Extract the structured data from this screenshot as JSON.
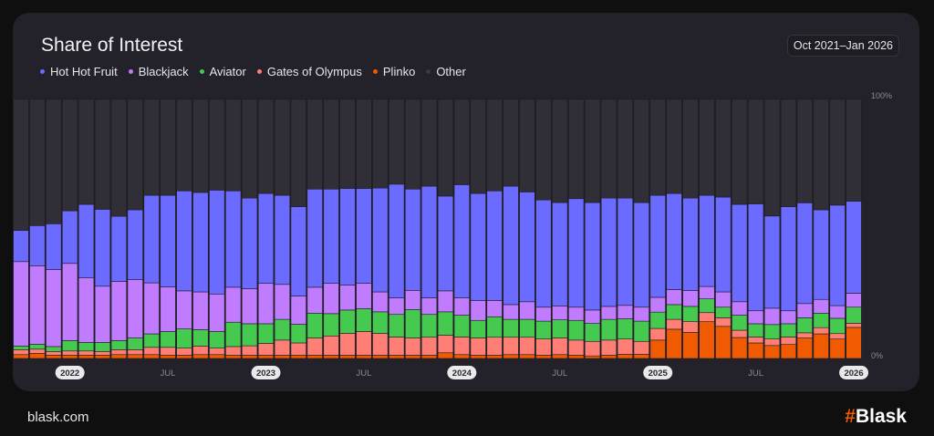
{
  "header": {
    "title": "Share of Interest",
    "date_range": "Oct 2021–Jan 2026"
  },
  "footer": {
    "site": "blask.com",
    "logo": "#Blask"
  },
  "chart_data": {
    "type": "bar",
    "stacked": true,
    "title": "Share of Interest",
    "ylim": [
      0,
      100
    ],
    "y_tick_labels": [
      "100%",
      "0%"
    ],
    "x_tick_labels": [
      {
        "category": "2022-01",
        "label": "2022",
        "pill": true
      },
      {
        "category": "2022-07",
        "label": "JUL",
        "pill": false
      },
      {
        "category": "2023-01",
        "label": "2023",
        "pill": true
      },
      {
        "category": "2023-07",
        "label": "JUL",
        "pill": false
      },
      {
        "category": "2024-01",
        "label": "2024",
        "pill": true
      },
      {
        "category": "2024-07",
        "label": "JUL",
        "pill": false
      },
      {
        "category": "2025-01",
        "label": "2025",
        "pill": true
      },
      {
        "category": "2025-07",
        "label": "JUL",
        "pill": false
      },
      {
        "category": "2026-01",
        "label": "2026",
        "pill": true
      }
    ],
    "legend_placement": "top-left",
    "categories": [
      "2021-10",
      "2021-11",
      "2021-12",
      "2022-01",
      "2022-02",
      "2022-03",
      "2022-04",
      "2022-05",
      "2022-06",
      "2022-07",
      "2022-08",
      "2022-09",
      "2022-10",
      "2022-11",
      "2022-12",
      "2023-01",
      "2023-02",
      "2023-03",
      "2023-04",
      "2023-05",
      "2023-06",
      "2023-07",
      "2023-08",
      "2023-09",
      "2023-10",
      "2023-11",
      "2023-12",
      "2024-01",
      "2024-02",
      "2024-03",
      "2024-04",
      "2024-05",
      "2024-06",
      "2024-07",
      "2024-08",
      "2024-09",
      "2024-10",
      "2024-11",
      "2024-12",
      "2025-01",
      "2025-02",
      "2025-03",
      "2025-04",
      "2025-05",
      "2025-06",
      "2025-07",
      "2025-08",
      "2025-09",
      "2025-10",
      "2025-11",
      "2025-12",
      "2026-01"
    ],
    "series": [
      {
        "name": "Plinko",
        "color": "#f05a00",
        "values": [
          1.5,
          2.0,
          1.3,
          1.3,
          1.3,
          1.3,
          1.5,
          1.5,
          1.5,
          1.3,
          1.3,
          1.5,
          1.5,
          1.3,
          1.3,
          1.3,
          1.3,
          1.3,
          1.3,
          1.3,
          1.3,
          1.3,
          1.3,
          1.3,
          1.3,
          1.3,
          2.2,
          1.5,
          1.3,
          1.3,
          1.5,
          1.5,
          1.3,
          1.5,
          1.3,
          1.0,
          1.3,
          1.6,
          1.6,
          7.1,
          11.3,
          10.1,
          14.2,
          12.4,
          8.1,
          6.0,
          5.0,
          5.4,
          7.9,
          9.5,
          7.5,
          12.0
        ]
      },
      {
        "name": "Gates of Olympus",
        "color": "#ff7f77",
        "values": [
          1.9,
          1.6,
          1.4,
          1.6,
          1.6,
          1.4,
          1.9,
          1.9,
          2.8,
          3.0,
          2.7,
          3.3,
          2.5,
          3.3,
          3.6,
          4.5,
          5.8,
          4.7,
          6.6,
          7.4,
          8.4,
          9.1,
          8.4,
          7.0,
          6.6,
          6.9,
          6.8,
          6.8,
          6.6,
          6.9,
          6.7,
          6.7,
          6.2,
          6.4,
          5.8,
          5.6,
          5.8,
          5.9,
          5.0,
          4.5,
          3.8,
          4.1,
          3.5,
          3.3,
          2.8,
          2.3,
          2.5,
          2.9,
          2.0,
          2.4,
          2.1,
          1.6
        ]
      },
      {
        "name": "Aviator",
        "color": "#46c94f",
        "values": [
          1.4,
          1.9,
          1.9,
          4.0,
          3.3,
          3.5,
          3.5,
          4.5,
          5.2,
          6.1,
          7.4,
          6.3,
          6.4,
          9.4,
          8.5,
          7.6,
          8.0,
          7.2,
          9.6,
          8.6,
          9.0,
          8.8,
          8.3,
          8.7,
          11.0,
          8.8,
          9.0,
          8.4,
          6.8,
          7.9,
          6.9,
          6.9,
          6.9,
          7.0,
          7.6,
          6.9,
          8.0,
          7.8,
          7.8,
          6.3,
          5.7,
          5.9,
          5.3,
          4.1,
          5.8,
          5.1,
          5.6,
          5.1,
          5.8,
          5.6,
          5.9,
          6.2
        ]
      },
      {
        "name": "Blackjack",
        "color": "#c07bff",
        "values": [
          32.6,
          30.3,
          29.7,
          29.8,
          24.9,
          21.7,
          22.9,
          22.5,
          19.7,
          17.2,
          14.7,
          14.6,
          14.5,
          13.5,
          13.5,
          15.6,
          13.5,
          10.9,
          10.0,
          11.7,
          9.6,
          9.8,
          7.7,
          6.4,
          7.4,
          6.4,
          8.1,
          6.7,
          7.7,
          6.3,
          5.7,
          6.8,
          5.4,
          5.4,
          5.1,
          5.2,
          5.0,
          5.2,
          5.4,
          5.7,
          5.8,
          6.1,
          4.8,
          5.9,
          5.2,
          5.0,
          6.3,
          5.0,
          5.5,
          5.3,
          4.9,
          5.4
        ]
      },
      {
        "name": "Hot Hot Fruit",
        "color": "#6b6bff",
        "values": [
          12.0,
          15.5,
          17.7,
          20.3,
          28.4,
          29.7,
          25.1,
          27.0,
          33.8,
          35.4,
          38.6,
          38.4,
          40.1,
          37.2,
          35.0,
          34.7,
          34.4,
          34.5,
          37.9,
          36.4,
          37.3,
          36.6,
          40.1,
          43.9,
          39.1,
          43.1,
          36.6,
          43.7,
          41.3,
          42.3,
          45.7,
          42.4,
          41.4,
          39.9,
          41.9,
          41.5,
          41.8,
          41.4,
          40.4,
          39.4,
          37.1,
          35.7,
          35.2,
          36.6,
          37.6,
          41.3,
          35.6,
          40.2,
          38.9,
          34.6,
          38.8,
          35.5
        ]
      },
      {
        "name": "Other",
        "color": "#302e37",
        "values": [
          50.6,
          48.7,
          48.0,
          43.0,
          40.5,
          42.4,
          45.1,
          42.6,
          37.0,
          37.0,
          35.3,
          35.9,
          35.0,
          35.3,
          38.1,
          36.3,
          37.0,
          41.4,
          34.6,
          34.6,
          34.4,
          34.4,
          34.2,
          32.7,
          34.6,
          33.5,
          37.3,
          32.9,
          36.3,
          35.3,
          33.5,
          35.7,
          38.8,
          39.8,
          38.3,
          39.8,
          38.1,
          38.1,
          39.8,
          37.0,
          36.3,
          38.1,
          37.0,
          37.7,
          40.5,
          40.3,
          45.0,
          41.4,
          39.9,
          42.6,
          40.8,
          39.3
        ]
      }
    ],
    "legend_order": [
      "Hot Hot Fruit",
      "Blackjack",
      "Aviator",
      "Gates of Olympus",
      "Plinko",
      "Other"
    ]
  }
}
